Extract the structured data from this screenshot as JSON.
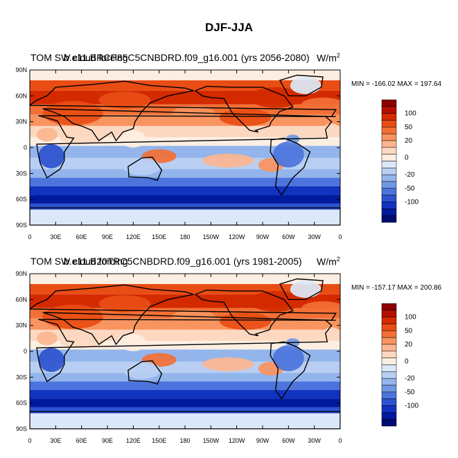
{
  "title": "DJF-JJA",
  "panels": [
    {
      "variable": "TOM SW cloud forcing",
      "case": "b.e11.BRCP85C5CNBDRD.f09_g16.001 (yrs 2056-2080)",
      "units_base": "W/m",
      "units_exp": "2",
      "stats": "MIN = -166.02  MAX = 197.64"
    },
    {
      "variable": "TOM SW cloud forcing",
      "case": "b.e11.B20TRC5CNBDRD.f09_g16.001 (yrs 1981-2005)",
      "units_base": "W/m",
      "units_exp": "2",
      "stats": "MIN = -157.17  MAX = 200.86"
    }
  ],
  "lat_labels": [
    "90N",
    "60N",
    "30N",
    "0",
    "30S",
    "60S",
    "90S"
  ],
  "lon_labels": [
    "0",
    "30E",
    "60E",
    "90E",
    "120E",
    "150E",
    "180",
    "150W",
    "120W",
    "90W",
    "60W",
    "30W",
    "0"
  ],
  "colorbar": {
    "colors": [
      "#8c0000",
      "#b50f00",
      "#d42a00",
      "#e84d14",
      "#f27035",
      "#f89460",
      "#fbb690",
      "#fdd8c0",
      "#fdeee2",
      "#dbe8f9",
      "#b8cff3",
      "#93b5ec",
      "#6e97e6",
      "#4c74dc",
      "#2c52cf",
      "#1233bf",
      "#001a9e",
      "#000b72"
    ],
    "labels": [
      {
        "text": "100",
        "boundary": 2
      },
      {
        "text": "50",
        "boundary": 4
      },
      {
        "text": "20",
        "boundary": 6
      },
      {
        "text": "0",
        "boundary": 8.5
      },
      {
        "text": "-20",
        "boundary": 11
      },
      {
        "text": "-50",
        "boundary": 13
      },
      {
        "text": "-100",
        "boundary": 15
      }
    ]
  }
}
